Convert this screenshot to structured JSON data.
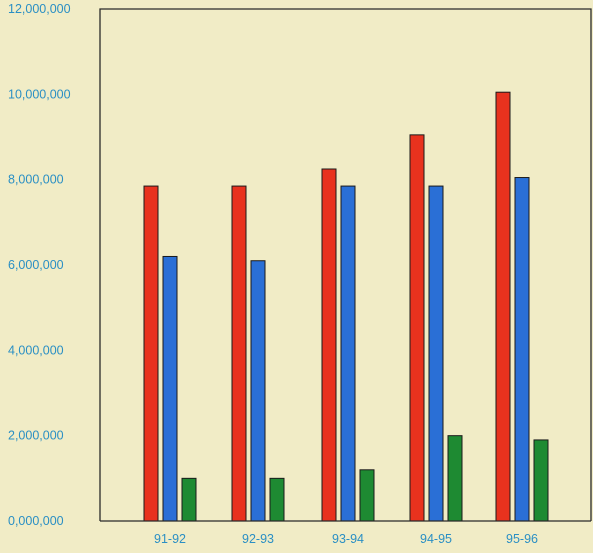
{
  "chart_data": {
    "type": "bar",
    "title": "",
    "xlabel": "",
    "ylabel": "",
    "categories": [
      "91-92",
      "92-93",
      "93-94",
      "94-95",
      "95-96"
    ],
    "series": [
      {
        "values": [
          7850000,
          7850000,
          8250000,
          9050000,
          10050000
        ],
        "color": "#e8321e"
      },
      {
        "values": [
          6200000,
          6100000,
          7850000,
          7850000,
          8050000
        ],
        "color": "#2a6fd6"
      },
      {
        "values": [
          1000000,
          1000000,
          1200000,
          2000000,
          1900000
        ],
        "color": "#1e8a32"
      }
    ],
    "ylim": [
      0,
      12000000
    ],
    "yticks": [
      "0,000,000",
      "2,000,000",
      "4,000,000",
      "6,000,000",
      "8,000,000",
      "10,000,000",
      "12,000,000"
    ],
    "ytick_values": [
      0,
      2000000,
      4000000,
      6000000,
      8000000,
      10000000,
      12000000
    ],
    "grid": false,
    "legend": "none",
    "colors": {
      "background": "#f1ecc6",
      "axis": "#2a2a2a",
      "tick_text": "#2a8fc4"
    }
  }
}
